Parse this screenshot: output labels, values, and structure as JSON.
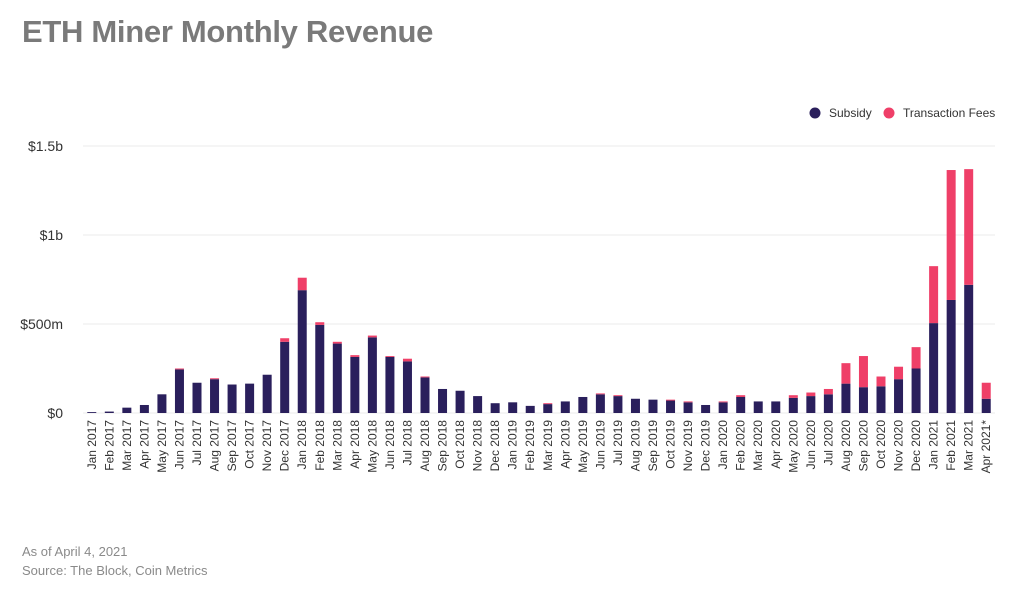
{
  "title": "ETH Miner Monthly Revenue",
  "footnotes": {
    "as_of": "As of April 4, 2021",
    "source": "Source: The Block, Coin Metrics"
  },
  "colors": {
    "subsidy": "#2a1f5c",
    "fees": "#ef3f68",
    "grid": "#ebebeb",
    "axis_text": "#333333"
  },
  "chart_data": {
    "type": "bar",
    "stacked": true,
    "title": "ETH Miner Monthly Revenue",
    "ylim": [
      0,
      1500
    ],
    "yticks": [
      {
        "value": 0,
        "label": "$0"
      },
      {
        "value": 500,
        "label": "$500m"
      },
      {
        "value": 1000,
        "label": "$1b"
      },
      {
        "value": 1500,
        "label": "$1.5b"
      }
    ],
    "grid": true,
    "legend_position": "top-right",
    "categories": [
      "Jan 2017",
      "Feb 2017",
      "Mar 2017",
      "Apr 2017",
      "May 2017",
      "Jun 2017",
      "Jul 2017",
      "Aug 2017",
      "Sep 2017",
      "Oct 2017",
      "Nov 2017",
      "Dec 2017",
      "Jan 2018",
      "Feb 2018",
      "Mar 2018",
      "Apr 2018",
      "May 2018",
      "Jun 2018",
      "Jul 2018",
      "Aug 2018",
      "Sep 2018",
      "Oct 2018",
      "Nov 2018",
      "Dec 2018",
      "Jan 2019",
      "Feb 2019",
      "Mar 2019",
      "Apr 2019",
      "May 2019",
      "Jun 2019",
      "Jul 2019",
      "Aug 2019",
      "Sep 2019",
      "Oct 2019",
      "Nov 2019",
      "Dec 2019",
      "Jan 2020",
      "Feb 2020",
      "Mar 2020",
      "Apr 2020",
      "May 2020",
      "Jun 2020",
      "Jul 2020",
      "Aug 2020",
      "Sep 2020",
      "Oct 2020",
      "Nov 2020",
      "Dec 2020",
      "Jan 2021",
      "Feb 2021",
      "Mar 2021",
      "Apr 2021*"
    ],
    "series": [
      {
        "name": "Subsidy",
        "color": "#2a1f5c",
        "values": [
          5,
          8,
          30,
          45,
          105,
          245,
          170,
          190,
          160,
          165,
          215,
          400,
          690,
          495,
          390,
          315,
          425,
          315,
          290,
          200,
          135,
          125,
          95,
          55,
          60,
          40,
          50,
          65,
          90,
          105,
          95,
          80,
          75,
          70,
          60,
          45,
          60,
          90,
          65,
          65,
          85,
          95,
          105,
          165,
          145,
          150,
          190,
          250,
          505,
          635,
          720,
          80
        ]
      },
      {
        "name": "Transaction Fees",
        "color": "#ef3f68",
        "values": [
          0,
          0,
          0,
          0,
          0,
          5,
          0,
          5,
          0,
          0,
          0,
          20,
          70,
          15,
          10,
          10,
          10,
          5,
          15,
          5,
          0,
          0,
          0,
          0,
          0,
          0,
          5,
          0,
          0,
          5,
          5,
          0,
          0,
          5,
          5,
          0,
          5,
          10,
          0,
          0,
          15,
          20,
          30,
          115,
          175,
          55,
          70,
          120,
          320,
          730,
          650,
          90
        ]
      }
    ]
  }
}
